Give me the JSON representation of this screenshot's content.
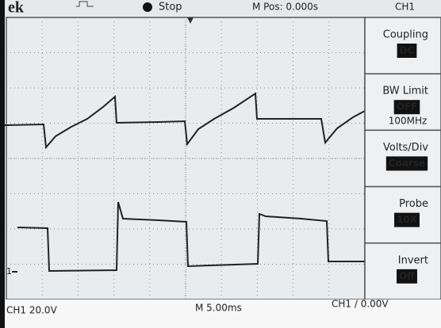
{
  "header": {
    "logo": "ek",
    "status": "Stop",
    "position": "M Pos: 0.000s",
    "channel": "CH1"
  },
  "menu": [
    {
      "label": "Coupling",
      "value": "DC"
    },
    {
      "label": "BW Limit",
      "value": "OFF",
      "extra": "100MHz"
    },
    {
      "label": "Volts/Div",
      "value": "Coarse"
    },
    {
      "label": "Probe",
      "value": "10X"
    },
    {
      "label": "Invert",
      "value": "Off"
    }
  ],
  "channel_marker": "1",
  "footer": {
    "ch1": "CH1 20.0V",
    "timebase": "M 5.00ms",
    "trigger": "CH1 ∕ 0.00V"
  }
}
